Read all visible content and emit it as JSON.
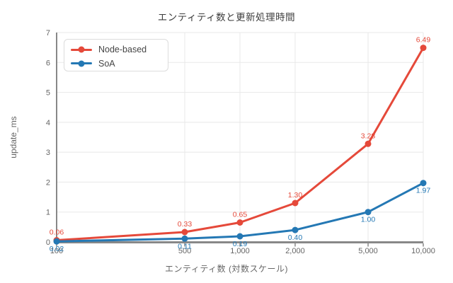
{
  "title": "エンティティ数と更新処理時間",
  "chart_data": {
    "type": "line",
    "title": "エンティティ数と更新処理時間",
    "xlabel": "エンティティ数 (対数スケール)",
    "ylabel": "update_ms",
    "x_scale": "log",
    "x": [
      100,
      500,
      1000,
      2000,
      5000,
      10000
    ],
    "x_tick_labels": [
      "100",
      "500",
      "1,000",
      "2,000",
      "5,000",
      "10,000"
    ],
    "y_ticks": [
      0,
      1,
      2,
      3,
      4,
      5,
      6,
      7
    ],
    "ylim": [
      0,
      7
    ],
    "grid": true,
    "legend_position": "top-left",
    "series": [
      {
        "name": "Node-based",
        "color": "#e5493a",
        "values": [
          0.06,
          0.33,
          0.65,
          1.3,
          3.28,
          6.49
        ],
        "labels": [
          "0.06",
          "0.33",
          "0.65",
          "1.30",
          "3.28",
          "6.49"
        ],
        "label_position": "above"
      },
      {
        "name": "SoA",
        "color": "#2478b4",
        "values": [
          0.02,
          0.11,
          0.19,
          0.4,
          1.0,
          1.97
        ],
        "labels": [
          "0.02",
          "0.11",
          "0.19",
          "0.40",
          "1.00",
          "1.97"
        ],
        "label_position": "below"
      }
    ],
    "colors": {
      "grid": "#e8e8e8",
      "axis": "#888888",
      "tick_text": "#666666",
      "title_text": "#3d3d3d"
    }
  }
}
